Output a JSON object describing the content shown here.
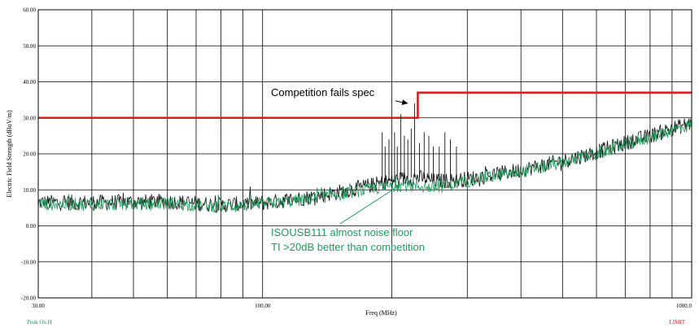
{
  "chart_data": {
    "type": "line",
    "title": "",
    "xlabel": "Freq (MHz)",
    "ylabel": "Electric Field Strength (dBuV/m)",
    "xscale": "log",
    "xlim": [
      30,
      1000
    ],
    "ylim": [
      -20,
      60
    ],
    "grid": true,
    "x_tick_labels": [
      {
        "value": 30,
        "label": "30.00"
      },
      {
        "value": 100,
        "label": "100.00"
      },
      {
        "value": 1000,
        "label": "1000.0"
      }
    ],
    "x_minor_gridlines": [
      40,
      50,
      60,
      70,
      80,
      90,
      200,
      300,
      400,
      500,
      600,
      700,
      800,
      900
    ],
    "y_tick_labels": [
      {
        "value": 60,
        "label": "60.00"
      },
      {
        "value": 50,
        "label": "50.00"
      },
      {
        "value": 40,
        "label": "40.00"
      },
      {
        "value": 30,
        "label": "30.00"
      },
      {
        "value": 20,
        "label": "20.00"
      },
      {
        "value": 10,
        "label": "10.00"
      },
      {
        "value": 0,
        "label": "0.00"
      },
      {
        "value": -10,
        "label": "-10.00"
      },
      {
        "value": -20,
        "label": "-20.00"
      }
    ],
    "series": [
      {
        "name": "LIMIT",
        "color": "#e31b1b",
        "style": "step",
        "x": [
          30,
          230,
          230,
          1000
        ],
        "y": [
          30,
          30,
          37,
          37
        ]
      },
      {
        "name": "",
        "color": "#111111",
        "style": "noisy",
        "x": [
          30,
          45,
          60,
          80,
          100,
          130,
          160,
          190,
          210,
          230,
          250,
          270,
          300,
          400,
          500,
          600,
          700,
          800,
          900,
          1000
        ],
        "y": [
          6.5,
          6.5,
          6.8,
          5.8,
          6.3,
          8.0,
          10.0,
          12.0,
          13.0,
          13.5,
          12.5,
          12.5,
          13.0,
          15.5,
          18.0,
          20.5,
          23.0,
          25.0,
          27.0,
          28.5
        ]
      },
      {
        "name": "",
        "color": "#1d9c5b",
        "style": "noisy",
        "x": [
          30,
          45,
          60,
          80,
          100,
          130,
          160,
          190,
          210,
          230,
          250,
          270,
          300,
          400,
          500,
          600,
          700,
          800,
          900,
          1000
        ],
        "y": [
          6.0,
          6.0,
          6.3,
          5.3,
          6.0,
          7.5,
          9.3,
          10.8,
          11.3,
          11.0,
          10.5,
          11.2,
          12.5,
          15.0,
          17.5,
          20.0,
          22.5,
          24.5,
          26.5,
          28.0
        ]
      }
    ],
    "spikes": {
      "color": "#111111",
      "x": [
        190,
        193,
        197,
        200,
        203,
        206,
        210,
        214,
        218,
        222,
        226,
        232,
        238,
        244,
        250,
        258,
        266,
        274,
        283
      ],
      "y": [
        26,
        22,
        24,
        20,
        26,
        22,
        31,
        25,
        24,
        27,
        34,
        23,
        26,
        25,
        22,
        22,
        26,
        24,
        22
      ]
    },
    "legend": [
      {
        "label": "Peak On H",
        "color": "#1d9c5b",
        "position": "bottom-left"
      },
      {
        "label": "LIMIT",
        "color": "#e31b1b",
        "position": "bottom-right"
      }
    ],
    "annotations": [
      {
        "lines": [
          "Competition fails spec"
        ],
        "color": "#000000",
        "arrow_to": {
          "x": 218,
          "y": 34
        }
      },
      {
        "lines": [
          "ISOUSB111 almost noise floor",
          "TI >20dB better than competition"
        ],
        "color": "#1d9c5b",
        "arrow_to": {
          "x": 210,
          "y": 11.5
        }
      }
    ]
  }
}
